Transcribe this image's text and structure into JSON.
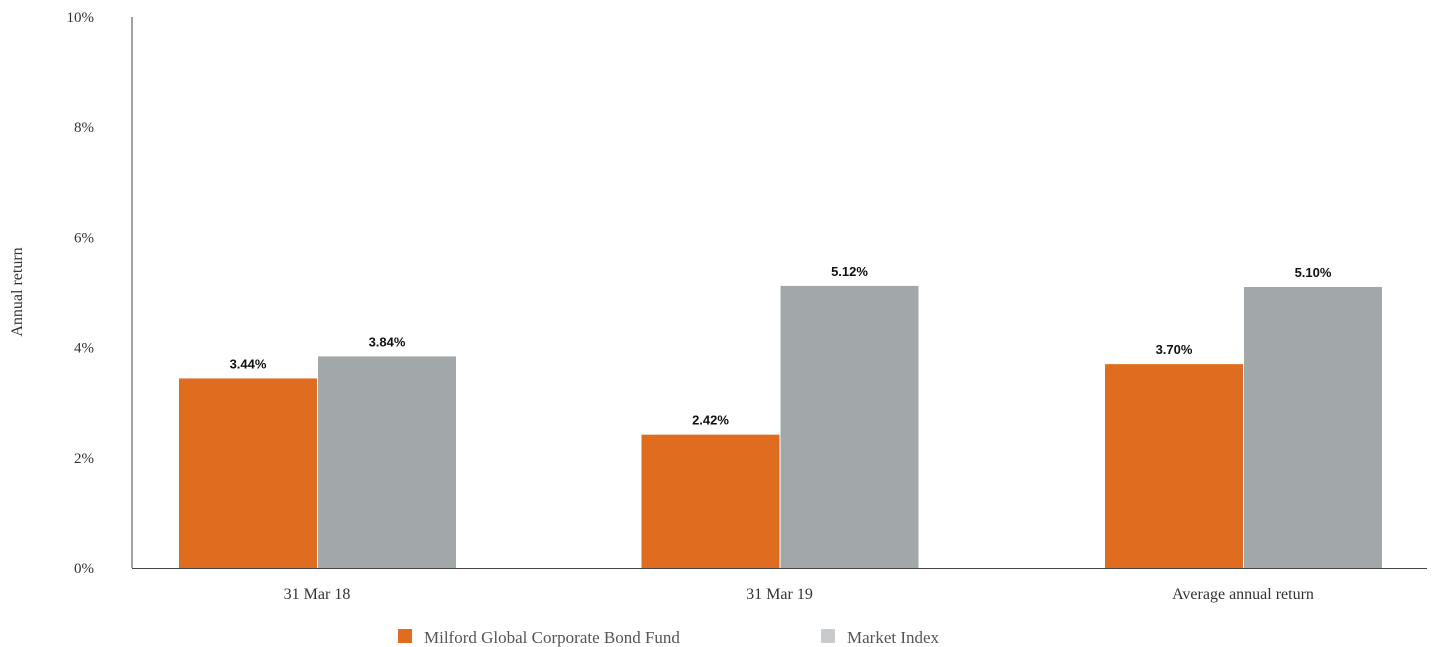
{
  "chart_data": {
    "type": "bar",
    "categories": [
      "31 Mar 18",
      "31 Mar 19",
      "Average annual return"
    ],
    "series": [
      {
        "name": "Milford Global Corporate Bond Fund",
        "values": [
          3.44,
          2.42,
          3.7
        ],
        "labels": [
          "3.44%",
          "2.42%",
          "3.70%"
        ],
        "color": "#E06C1F"
      },
      {
        "name": "Market Index",
        "values": [
          3.84,
          5.12,
          5.1
        ],
        "labels": [
          "3.84%",
          "5.12%",
          "5.10%"
        ],
        "color": "#A2A8AA"
      }
    ],
    "ylabel": "Annual return",
    "xlabel": "",
    "ylim": [
      0,
      10
    ],
    "yticks": [
      0,
      2,
      4,
      6,
      8,
      10
    ],
    "ytick_labels": [
      "0%",
      "2%",
      "4%",
      "6%",
      "8%",
      "10%"
    ],
    "grid": false,
    "legend": "bottom",
    "legend_swatch_colors": [
      "#E06C1F",
      "#C8CBCD"
    ],
    "axis_color": "#444444"
  }
}
